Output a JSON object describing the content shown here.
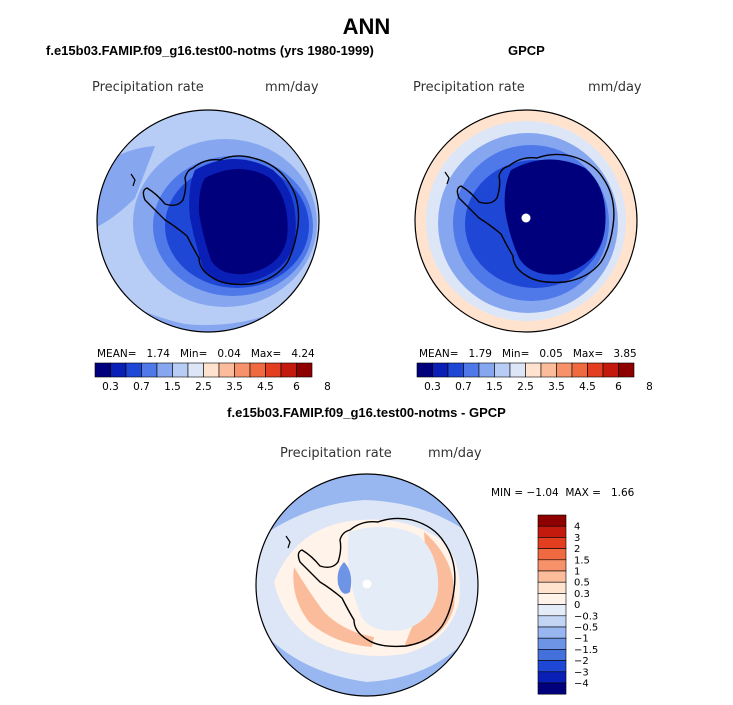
{
  "main_title": "ANN",
  "panels": [
    {
      "title": "f.e15b03.FAMIP.f09_g16.test00-notms (yrs 1980-1999)",
      "variable": "Precipitation rate",
      "units": "mm/day",
      "stats": {
        "mean_label": "MEAN=",
        "mean": "1.74",
        "min_label": "Min=",
        "min": "0.04",
        "max_label": "Max=",
        "max": "4.24"
      }
    },
    {
      "title": "GPCP",
      "variable": "Precipitation rate",
      "units": "mm/day",
      "stats": {
        "mean_label": "MEAN=",
        "mean": "1.79",
        "min_label": "Min=",
        "min": "0.05",
        "max_label": "Max=",
        "max": "3.85"
      }
    },
    {
      "title": "f.e15b03.FAMIP.f09_g16.test00-notms - GPCP",
      "variable": "Precipitation rate",
      "units": "mm/day",
      "stats": {
        "min_label": "MIN =",
        "min": "−1.04",
        "max_label": "MAX =",
        "max": "1.66"
      }
    }
  ],
  "chart_data": [
    {
      "type": "heatmap",
      "projection": "south-polar-stereographic",
      "title": "f.e15b03.FAMIP.f09_g16.test00-notms (yrs 1980-1999)",
      "variable": "Precipitation rate",
      "units": "mm/day",
      "mean": 1.74,
      "min": 0.04,
      "max": 4.24,
      "colorbar": {
        "orientation": "horizontal",
        "levels": [
          "0.3",
          "0.7",
          "1.5",
          "2.5",
          "3.5",
          "4.5",
          "6",
          "8"
        ],
        "colors": [
          "#00007d",
          "#0a1fb5",
          "#1f47d6",
          "#4f78e8",
          "#86a7f0",
          "#b7cdf5",
          "#dce6f7",
          "#ffe3cf",
          "#fbbc9c",
          "#f6916a",
          "#ef6a40",
          "#e23e1f",
          "#c41a0e",
          "#8e0000"
        ]
      }
    },
    {
      "type": "heatmap",
      "projection": "south-polar-stereographic",
      "title": "GPCP",
      "variable": "Precipitation rate",
      "units": "mm/day",
      "mean": 1.79,
      "min": 0.05,
      "max": 3.85,
      "colorbar": {
        "orientation": "horizontal",
        "levels": [
          "0.3",
          "0.7",
          "1.5",
          "2.5",
          "3.5",
          "4.5",
          "6",
          "8"
        ],
        "colors": [
          "#00007d",
          "#0a1fb5",
          "#1f47d6",
          "#4f78e8",
          "#86a7f0",
          "#b7cdf5",
          "#dce6f7",
          "#ffe3cf",
          "#fbbc9c",
          "#f6916a",
          "#ef6a40",
          "#e23e1f",
          "#c41a0e",
          "#8e0000"
        ]
      }
    },
    {
      "type": "heatmap",
      "projection": "south-polar-stereographic",
      "title": "f.e15b03.FAMIP.f09_g16.test00-notms - GPCP",
      "variable": "Precipitation rate",
      "units": "mm/day",
      "min": -1.04,
      "max": 1.66,
      "colorbar": {
        "orientation": "vertical",
        "levels": [
          "4",
          "3",
          "2",
          "1.5",
          "1",
          "0.5",
          "0.3",
          "0",
          "−0.3",
          "−0.5",
          "−1",
          "−1.5",
          "−2",
          "−3",
          "−4"
        ],
        "colors": [
          "#8e0000",
          "#c41a0e",
          "#e23e1f",
          "#ef6a40",
          "#f6916a",
          "#fbbc9c",
          "#ffe3cf",
          "#fff3ea",
          "#e4ecf8",
          "#c3d5f4",
          "#98b6ef",
          "#6e94e6",
          "#4470dc",
          "#1f47d6",
          "#0a1fb5",
          "#00007d"
        ]
      }
    }
  ]
}
